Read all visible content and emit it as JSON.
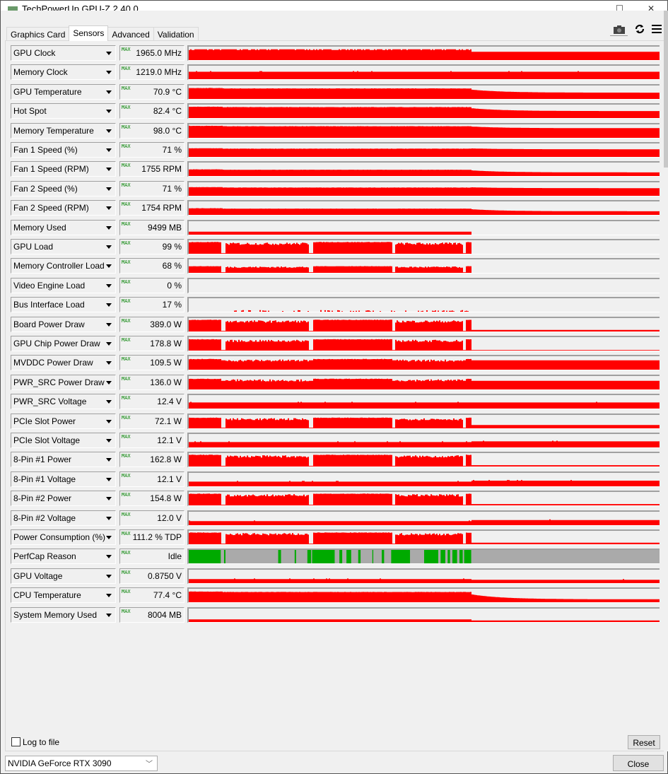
{
  "window": {
    "title": "TechPowerUp GPU-Z 2.40.0"
  },
  "tabs": [
    {
      "label": "Graphics Card"
    },
    {
      "label": "Sensors",
      "active": true
    },
    {
      "label": "Advanced"
    },
    {
      "label": "Validation"
    }
  ],
  "toolbar_icons": [
    "camera-icon",
    "refresh-icon",
    "menu-icon"
  ],
  "colors": {
    "graph_fill": "#ff0000",
    "perfcap_idle": "#aaaaaa",
    "perfcap_util": "#00aa00",
    "max_label": "#008000"
  },
  "max_tag": "MAX",
  "sensors": [
    {
      "label": "GPU Clock",
      "value": "1965.0 MHz",
      "kind": "clock",
      "load": 0.8,
      "idle": 0.62
    },
    {
      "label": "Memory Clock",
      "value": "1219.0 MHz",
      "kind": "flat",
      "load": 0.55,
      "idle": 0.55
    },
    {
      "label": "GPU Temperature",
      "value": "70.9 °C",
      "kind": "temp",
      "load": 0.82,
      "idle": 0.45
    },
    {
      "label": "Hot Spot",
      "value": "82.4 °C",
      "kind": "temp",
      "load": 0.85,
      "idle": 0.5
    },
    {
      "label": "Memory Temperature",
      "value": "98.0 °C",
      "kind": "temp",
      "load": 0.9,
      "idle": 0.7
    },
    {
      "label": "Fan 1 Speed (%)",
      "value": "71 %",
      "kind": "temp",
      "load": 0.65,
      "idle": 0.55
    },
    {
      "label": "Fan 1 Speed (RPM)",
      "value": "1755 RPM",
      "kind": "temp",
      "load": 0.5,
      "idle": 0.25
    },
    {
      "label": "Fan 2 Speed (%)",
      "value": "71 %",
      "kind": "temp",
      "load": 0.65,
      "idle": 0.55
    },
    {
      "label": "Fan 2 Speed (RPM)",
      "value": "1754 RPM",
      "kind": "temp",
      "load": 0.5,
      "idle": 0.25
    },
    {
      "label": "Memory Used",
      "value": "9499 MB",
      "kind": "step",
      "load": 0.22,
      "idle": 0
    },
    {
      "label": "GPU Load",
      "value": "99 %",
      "kind": "load",
      "load": 0.88,
      "idle": 0
    },
    {
      "label": "Memory Controller Load",
      "value": "68 %",
      "kind": "load",
      "load": 0.5,
      "idle": 0
    },
    {
      "label": "Video Engine Load",
      "value": "0 %",
      "kind": "none",
      "load": 0,
      "idle": 0
    },
    {
      "label": "Bus Interface Load",
      "value": "17 %",
      "kind": "sparse",
      "load": 0.08,
      "idle": 0
    },
    {
      "label": "Board Power Draw",
      "value": "389.0 W",
      "kind": "load",
      "load": 0.88,
      "idle": 0.12
    },
    {
      "label": "GPU Chip Power Draw",
      "value": "178.8 W",
      "kind": "load",
      "load": 0.85,
      "idle": 0.05
    },
    {
      "label": "MVDDC Power Draw",
      "value": "109.5 W",
      "kind": "load",
      "load": 0.8,
      "idle": 0.7
    },
    {
      "label": "PWR_SRC Power Draw",
      "value": "136.0 W",
      "kind": "load",
      "load": 0.8,
      "idle": 0.65
    },
    {
      "label": "PWR_SRC Voltage",
      "value": "12.4 V",
      "kind": "flat",
      "load": 0.45,
      "idle": 0.45
    },
    {
      "label": "PCIe Slot Power",
      "value": "72.1 W",
      "kind": "load",
      "load": 0.8,
      "idle": 0.25
    },
    {
      "label": "PCIe Slot Voltage",
      "value": "12.1 V",
      "kind": "flat",
      "load": 0.4,
      "idle": 0.45
    },
    {
      "label": "8-Pin #1 Power",
      "value": "162.8 W",
      "kind": "load",
      "load": 0.88,
      "idle": 0.1
    },
    {
      "label": "8-Pin #1 Voltage",
      "value": "12.1 V",
      "kind": "flat",
      "load": 0.35,
      "idle": 0.42
    },
    {
      "label": "8-Pin #2 Power",
      "value": "154.8 W",
      "kind": "load",
      "load": 0.88,
      "idle": 0.1
    },
    {
      "label": "8-Pin #2 Voltage",
      "value": "12.0 V",
      "kind": "flat",
      "load": 0.3,
      "idle": 0.38
    },
    {
      "label": "Power Consumption (%)",
      "value": "111.2 % TDP",
      "kind": "load",
      "load": 0.88,
      "idle": 0.12
    },
    {
      "label": "PerfCap Reason",
      "value": "Idle",
      "kind": "perfcap",
      "load": 1,
      "idle": 1
    },
    {
      "label": "GPU Voltage",
      "value": "0.8750 V",
      "kind": "flat",
      "load": 0.3,
      "idle": 0.25
    },
    {
      "label": "CPU Temperature",
      "value": "77.4 °C",
      "kind": "temp",
      "load": 0.8,
      "idle": 0.2
    },
    {
      "label": "System Memory Used",
      "value": "8004 MB",
      "kind": "step",
      "load": 0.2,
      "idle": 0.12
    }
  ],
  "footer": {
    "log_label": "Log to file",
    "log_checked": false,
    "reset_label": "Reset",
    "gpu_select": "NVIDIA GeForce RTX 3090",
    "close_label": "Close"
  }
}
